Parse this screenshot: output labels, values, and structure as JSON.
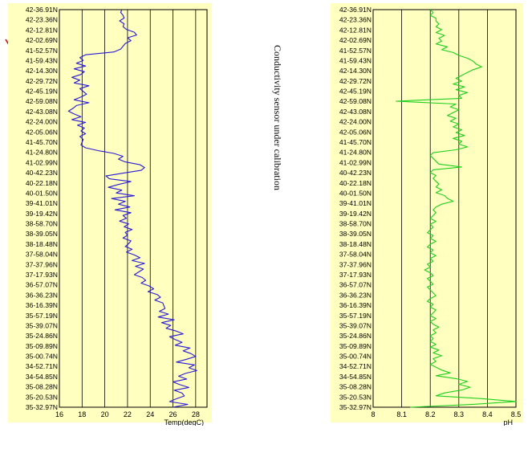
{
  "note": "Conductivity sensor under calibration",
  "colors": {
    "panel_bg": "#ffffc0",
    "temp_line": "#2a1ad8",
    "ph_line": "#1fcf1f",
    "arrow": "#e00000",
    "grid": "#000000"
  },
  "icons": {
    "direction_arrow": "down-arrow-icon"
  },
  "latitudes": [
    "42-36.91N",
    "42-23.36N",
    "42-12.81N",
    "42-02.69N",
    "41-52.57N",
    "41-59.43N",
    "42-14.30N",
    "42-29.72N",
    "42-45.19N",
    "42-59.08N",
    "42-43.08N",
    "42-24.00N",
    "42-05.06N",
    "41-45.70N",
    "41-24.80N",
    "41-02.99N",
    "40-42.23N",
    "40-22.18N",
    "40-01.50N",
    "39-41.01N",
    "39-19.42N",
    "38-58.70N",
    "38-39.05N",
    "38-18.48N",
    "37-58.04N",
    "37-37.96N",
    "37-17.93N",
    "36-57.07N",
    "36-36.23N",
    "36-16.39N",
    "35-57.19N",
    "35-39.07N",
    "35-24.86N",
    "35-09.89N",
    "35-00.74N",
    "34-52.71N",
    "34-54.85N",
    "35-08.28N",
    "35-20.53N",
    "35-32.97N"
  ],
  "chart_data": [
    {
      "type": "line",
      "orientation": "vertical-profile",
      "xlabel": "Temp(degC)",
      "xlim": [
        16,
        29
      ],
      "xticks": [
        "16",
        "18",
        "20",
        "22",
        "24",
        "26",
        "28"
      ],
      "xtick_values": [
        16,
        18,
        20,
        22,
        24,
        26,
        28
      ],
      "series": [
        {
          "values": [
            21.5,
            21.4,
            21.6,
            21.7,
            21.3,
            21.7,
            21.6,
            21.9,
            22.6,
            22.8,
            22.0,
            22.3,
            21.8,
            21.6,
            21.4,
            20.8,
            18.3,
            17.8,
            18.1,
            17.5,
            18.3,
            17.3,
            18.2,
            17.9,
            17.1,
            17.8,
            17.3,
            18.6,
            17.8,
            18.1,
            18.4,
            17.9,
            17.3,
            18.6,
            17.5,
            17.2,
            16.8,
            17.3,
            17.9,
            17.1,
            18.3,
            17.6,
            18.2,
            17.9,
            18.3,
            17.8,
            18.1,
            18.0,
            17.9,
            18.3,
            19.4,
            20.8,
            21.6,
            21.2,
            21.8,
            23.1,
            23.5,
            23.2,
            21.6,
            20.1,
            20.4,
            22.3,
            21.2,
            20.3,
            21.5,
            21.0,
            22.6,
            20.6,
            21.8,
            21.2,
            22.2,
            20.9,
            22.3,
            21.6,
            21.9,
            21.3,
            22.1,
            21.7,
            22.4,
            21.8,
            22.0,
            21.6,
            22.3,
            22.1,
            21.8,
            22.4,
            21.9,
            22.6,
            23.1,
            22.4,
            23.5,
            22.7,
            23.4,
            23.0,
            22.6,
            23.3,
            23.6,
            23.2,
            23.9,
            24.3,
            23.8,
            24.6,
            24.9,
            24.4,
            25.1,
            25.2,
            25.3,
            24.8,
            25.6,
            24.7,
            26.1,
            25.0,
            25.8,
            25.4,
            26.3,
            26.9,
            25.7,
            26.2,
            26.8,
            26.2,
            27.5,
            26.9,
            27.6,
            28.0,
            27.2,
            26.3,
            27.9,
            27.4,
            28.1,
            27.1,
            26.5,
            27.2,
            26.0,
            26.6,
            27.4,
            26.1,
            26.8,
            27.0,
            26.3,
            25.7,
            27.3,
            26.0
          ],
          "lat_range": [
            0,
            39
          ]
        }
      ]
    },
    {
      "type": "line",
      "orientation": "vertical-profile",
      "xlabel": "pH",
      "xlim": [
        8.0,
        8.5
      ],
      "xticks": [
        "8",
        "8.1",
        "8.2",
        "8.3",
        "8.4",
        "8.5"
      ],
      "xtick_values": [
        8.0,
        8.1,
        8.2,
        8.3,
        8.4,
        8.5
      ],
      "series": [
        {
          "values": [
            8.2,
            8.21,
            8.2,
            8.22,
            8.22,
            8.23,
            8.22,
            8.24,
            8.22,
            8.25,
            8.23,
            8.24,
            8.22,
            8.26,
            8.24,
            8.28,
            8.3,
            8.33,
            8.35,
            8.36,
            8.38,
            8.35,
            8.33,
            8.31,
            8.29,
            8.31,
            8.28,
            8.32,
            8.29,
            8.33,
            8.3,
            8.31,
            8.08,
            8.29,
            8.27,
            8.3,
            8.28,
            8.26,
            8.29,
            8.27,
            8.3,
            8.28,
            8.31,
            8.29,
            8.32,
            8.28,
            8.31,
            8.3,
            8.33,
            8.29,
            8.21,
            8.2,
            8.21,
            8.22,
            8.23,
            8.31,
            8.21,
            8.2,
            8.22,
            8.21,
            8.22,
            8.23,
            8.22,
            8.24,
            8.22,
            8.25,
            8.26,
            8.28,
            8.24,
            8.22,
            8.21,
            8.22,
            8.21,
            8.2,
            8.22,
            8.2,
            8.21,
            8.2,
            8.19,
            8.21,
            8.2,
            8.22,
            8.2,
            8.19,
            8.21,
            8.2,
            8.22,
            8.2,
            8.21,
            8.19,
            8.2,
            8.18,
            8.2,
            8.21,
            8.19,
            8.2,
            8.21,
            8.19,
            8.2,
            8.21,
            8.22,
            8.2,
            8.19,
            8.21,
            8.2,
            8.22,
            8.21,
            8.2,
            8.22,
            8.2,
            8.21,
            8.23,
            8.21,
            8.22,
            8.2,
            8.21,
            8.2,
            8.22,
            8.2,
            8.23,
            8.21,
            8.24,
            8.21,
            8.22,
            8.2,
            8.22,
            8.24,
            8.27,
            8.22,
            8.29,
            8.33,
            8.3,
            8.34,
            8.31,
            8.25,
            8.22,
            8.38,
            8.5,
            8.35,
            8.13
          ],
          "lat_range": [
            0,
            39
          ]
        }
      ]
    }
  ]
}
